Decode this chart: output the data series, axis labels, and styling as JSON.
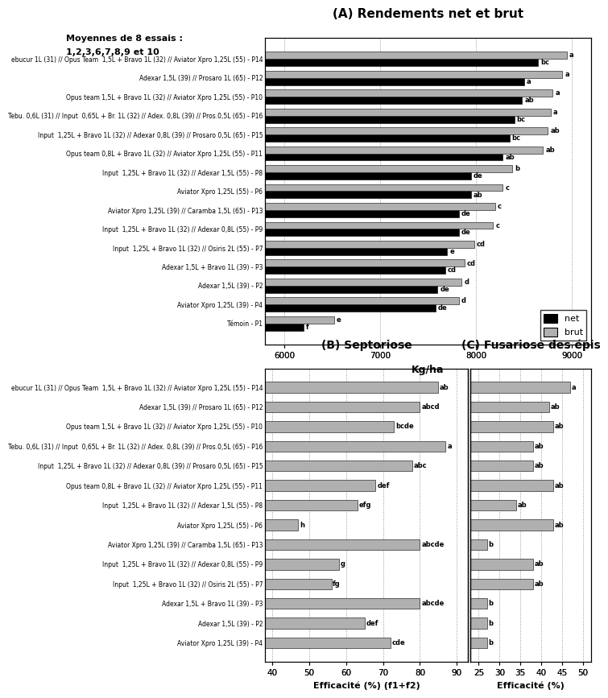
{
  "title_A": "(A) Rendements net et brut",
  "title_B": "(B) Septoriose",
  "title_C": "(C) Fusariose des épis",
  "suptitle_line1": "Moyennes de 8 essais :",
  "suptitle_line2": "1,2,3,6,7,8,9 et 10",
  "xlabel_A": "Kg/ha",
  "xlabel_B": "Efficacité (%) (f1+f2)",
  "xlabel_C": "Efficacité (%)",
  "labels_A": [
    "ebucur 1L (31) // Opus Team  1,5L + Bravo 1L (32) // Aviator Xpro 1,25L (55) - P14",
    "Adexar 1,5L (39) // Prosaro 1L (65) - P12",
    "Opus team 1,5L + Bravo 1L (32) // Aviator Xpro 1,25L (55) - P10",
    "Tebu. 0,6L (31) // Input  0,65L + Br. 1L (32) // Adex. 0,8L (39) // Pros.0,5L (65) - P16",
    "Input  1,25L + Bravo 1L (32) // Adexar 0,8L (39) // Prosaro 0,5L (65) - P15",
    "Opus team 0,8L + Bravo 1L (32) // Aviator Xpro 1,25L (55) - P11",
    "Input  1,25L + Bravo 1L (32) // Adexar 1,5L (55) - P8",
    "Aviator Xpro 1,25L (55) - P6",
    "Aviator Xpro 1,25L (39) // Caramba 1,5L (65) - P13",
    "Input  1,25L + Bravo 1L (32) // Adexar 0,8L (55) - P9",
    "Input  1,25L + Bravo 1L (32) // Osiris 2L (55) - P7",
    "Adexar 1,5L + Bravo 1L (39) - P3",
    "Adexar 1,5L (39) - P2",
    "Aviator Xpro 1,25L (39) - P4",
    "Témoin - P1"
  ],
  "labels_BC": [
    "ebucur 1L (31) // Opus Team  1,5L + Bravo 1L (32) // Aviator Xpro 1,25L (55) - P14",
    "Adexar 1,5L (39) // Prosaro 1L (65) - P12",
    "Opus team 1,5L + Bravo 1L (32) // Aviator Xpro 1,25L (55) - P10",
    "Tebu. 0,6L (31) // Input  0,65L + Br. 1L (32) // Adex. 0,8L (39) // Pros.0,5L (65) - P16",
    "Input  1,25L + Bravo 1L (32) // Adexar 0,8L (39) // Prosaro 0,5L (65) - P15",
    "Opus team 0,8L + Bravo 1L (32) // Aviator Xpro 1,25L (55) - P11",
    "Input  1,25L + Bravo 1L (32) // Adexar 1,5L (55) - P8",
    "Aviator Xpro 1,25L (55) - P6",
    "Aviator Xpro 1,25L (39) // Caramba 1,5L (65) - P13",
    "Input  1,25L + Bravo 1L (32) // Adexar 0,8L (55) - P9",
    "Input  1,25L + Bravo 1L (32) // Osiris 2L (55) - P7",
    "Adexar 1,5L + Bravo 1L (39) - P3",
    "Adexar 1,5L (39) - P2",
    "Aviator Xpro 1,25L (39) - P4"
  ],
  "net_values": [
    8650,
    8500,
    8480,
    8400,
    8350,
    8280,
    7950,
    7950,
    7820,
    7820,
    7700,
    7680,
    7600,
    7580,
    6200
  ],
  "brut_values": [
    8950,
    8900,
    8800,
    8780,
    8750,
    8700,
    8380,
    8280,
    8200,
    8180,
    7980,
    7880,
    7850,
    7820,
    6520
  ],
  "net_labels": [
    "bc",
    "a",
    "ab",
    "bc",
    "bc",
    "ab",
    "de",
    "ab",
    "de",
    "de",
    "e",
    "cd",
    "de",
    "de",
    "f"
  ],
  "brut_labels": [
    "a",
    "a",
    "a",
    "a",
    "ab",
    "ab",
    "b",
    "c",
    "c",
    "c",
    "cd",
    "cd",
    "d",
    "d",
    "e"
  ],
  "xlim_A": [
    5800,
    9200
  ],
  "xticks_A": [
    6000,
    7000,
    8000,
    9000
  ],
  "sept_values": [
    85,
    80,
    73,
    87,
    78,
    68,
    63,
    47,
    80,
    58,
    56,
    80,
    65,
    72
  ],
  "sept_labels": [
    "ab",
    "abcd",
    "bcde",
    "a",
    "abc",
    "def",
    "efg",
    "h",
    "abcde",
    "g",
    "fg",
    "abcde",
    "def",
    "cde"
  ],
  "fus_values": [
    47,
    42,
    43,
    38,
    38,
    43,
    34,
    43,
    27,
    38,
    38,
    27,
    27,
    27
  ],
  "fus_labels": [
    "a",
    "ab",
    "ab",
    "ab",
    "ab",
    "ab",
    "ab",
    "ab",
    "b",
    "ab",
    "ab",
    "b",
    "b",
    "b"
  ],
  "xlim_B": [
    38,
    93
  ],
  "xticks_B": [
    40,
    50,
    60,
    70,
    80,
    90
  ],
  "xlim_C": [
    23,
    52
  ],
  "xticks_C": [
    25,
    30,
    35,
    40,
    45,
    50
  ],
  "bar_color_net": "#000000",
  "bar_color_brut": "#b0b0b0",
  "bar_color_BC": "#b0b0b0",
  "legend_net": "net",
  "legend_brut": "brut"
}
